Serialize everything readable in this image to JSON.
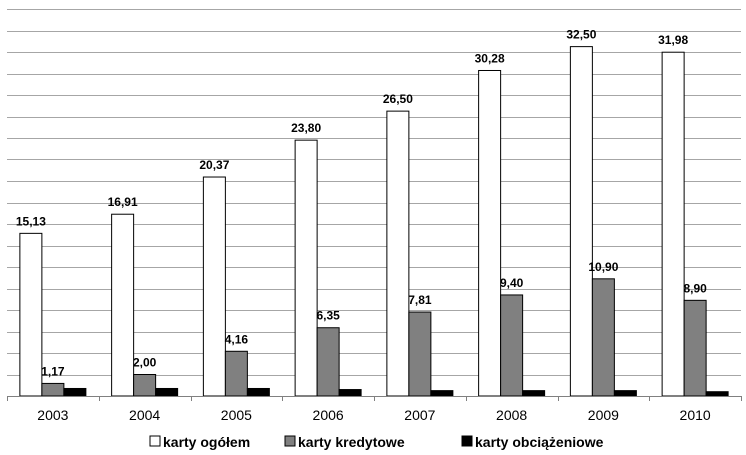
{
  "chart_data": {
    "type": "bar",
    "categories": [
      "2003",
      "2004",
      "2005",
      "2006",
      "2007",
      "2008",
      "2009",
      "2010"
    ],
    "series": [
      {
        "name": "karty ogółem",
        "color": "#ffffff",
        "values": [
          15.13,
          16.91,
          20.37,
          23.8,
          26.5,
          30.28,
          32.5,
          31.98
        ],
        "labels": [
          "15,13",
          "16,91",
          "20,37",
          "23,80",
          "26,50",
          "30,28",
          "32,50",
          "31,98"
        ]
      },
      {
        "name": "karty kredytowe",
        "color": "#808080",
        "values": [
          1.17,
          2.0,
          4.16,
          6.35,
          7.81,
          9.4,
          10.9,
          8.9
        ],
        "labels": [
          "1,17",
          "2,00",
          "4,16",
          "6,35",
          "7,81",
          "9,40",
          "10,90",
          "8,90"
        ]
      },
      {
        "name": "karty obciążeniowe",
        "color": "#000000",
        "values": [
          0.7,
          0.7,
          0.7,
          0.6,
          0.5,
          0.5,
          0.5,
          0.4
        ],
        "labels": []
      }
    ],
    "ylim": [
      0,
      36
    ],
    "ytick_step": 2,
    "grid": true,
    "legend_position": "bottom"
  }
}
